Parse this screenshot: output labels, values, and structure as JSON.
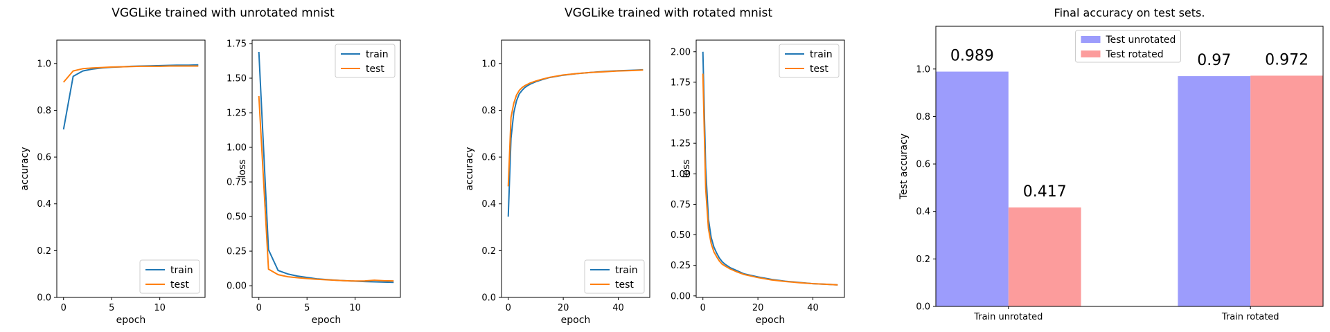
{
  "figure": {
    "left_title": "VGGLike trained with unrotated mnist",
    "middle_title": "VGGLike trained with rotated mnist"
  },
  "colors": {
    "train": "#1f77b4",
    "test": "#ff7f0e",
    "test_unrotated_bar": "#9c9cfc",
    "test_rotated_bar": "#fc9c9c"
  },
  "chart_data": [
    {
      "id": "unrot_acc",
      "type": "line",
      "xlabel": "epoch",
      "ylabel": "accuracy",
      "xlim": [
        -0.7,
        14.7
      ],
      "ylim": [
        0.0,
        1.1
      ],
      "xticks": [
        0,
        5,
        10
      ],
      "yticks": [
        0.0,
        0.2,
        0.4,
        0.6,
        0.8,
        1.0
      ],
      "ytick_labels": [
        "0.0",
        "0.2",
        "0.4",
        "0.6",
        "0.8",
        "1.0"
      ],
      "legend": "bottom-right",
      "series": [
        {
          "name": "train",
          "x": [
            0,
            1,
            2,
            3,
            4,
            5,
            6,
            7,
            8,
            9,
            10,
            11,
            12,
            13,
            14
          ],
          "y": [
            0.718,
            0.945,
            0.968,
            0.976,
            0.981,
            0.984,
            0.986,
            0.988,
            0.989,
            0.99,
            0.991,
            0.992,
            0.993,
            0.993,
            0.994
          ]
        },
        {
          "name": "test",
          "x": [
            0,
            1,
            2,
            3,
            4,
            5,
            6,
            7,
            8,
            9,
            10,
            11,
            12,
            13,
            14
          ],
          "y": [
            0.92,
            0.968,
            0.978,
            0.981,
            0.983,
            0.985,
            0.986,
            0.987,
            0.988,
            0.988,
            0.988,
            0.989,
            0.989,
            0.989,
            0.989
          ]
        }
      ]
    },
    {
      "id": "unrot_loss",
      "type": "line",
      "xlabel": "epoch",
      "ylabel": "loss",
      "xlim": [
        -0.7,
        14.7
      ],
      "ylim": [
        -0.0845,
        1.775
      ],
      "xticks": [
        0,
        5,
        10
      ],
      "yticks": [
        0.0,
        0.25,
        0.5,
        0.75,
        1.0,
        1.25,
        1.5,
        1.75
      ],
      "ytick_labels": [
        "0.00",
        "0.25",
        "0.50",
        "0.75",
        "1.00",
        "1.25",
        "1.50",
        "1.75"
      ],
      "legend": "top-right",
      "series": [
        {
          "name": "train",
          "x": [
            0,
            1,
            2,
            3,
            4,
            5,
            6,
            7,
            8,
            9,
            10,
            11,
            12,
            13,
            14
          ],
          "y": [
            1.69,
            0.26,
            0.11,
            0.085,
            0.07,
            0.06,
            0.05,
            0.045,
            0.04,
            0.036,
            0.033,
            0.03,
            0.028,
            0.026,
            0.024
          ]
        },
        {
          "name": "test",
          "x": [
            0,
            1,
            2,
            3,
            4,
            5,
            6,
            7,
            8,
            9,
            10,
            11,
            12,
            13,
            14
          ],
          "y": [
            1.37,
            0.12,
            0.08,
            0.065,
            0.058,
            0.052,
            0.047,
            0.043,
            0.039,
            0.036,
            0.034,
            0.035,
            0.04,
            0.036,
            0.035
          ]
        }
      ]
    },
    {
      "id": "rot_acc",
      "type": "line",
      "xlabel": "epoch",
      "ylabel": "accuracy",
      "xlim": [
        -2.45,
        51.45
      ],
      "ylim": [
        0.0,
        1.1
      ],
      "xticks": [
        0,
        20,
        40
      ],
      "yticks": [
        0.0,
        0.2,
        0.4,
        0.6,
        0.8,
        1.0
      ],
      "ytick_labels": [
        "0.0",
        "0.2",
        "0.4",
        "0.6",
        "0.8",
        "1.0"
      ],
      "legend": "bottom-right",
      "series": [
        {
          "name": "train",
          "x": [
            0,
            1,
            2,
            3,
            4,
            5,
            6,
            7,
            8,
            10,
            12,
            15,
            20,
            25,
            30,
            35,
            40,
            45,
            49
          ],
          "y": [
            0.345,
            0.68,
            0.79,
            0.84,
            0.87,
            0.885,
            0.897,
            0.905,
            0.912,
            0.922,
            0.93,
            0.94,
            0.95,
            0.957,
            0.962,
            0.966,
            0.969,
            0.971,
            0.973
          ]
        },
        {
          "name": "test",
          "x": [
            0,
            1,
            2,
            3,
            4,
            5,
            6,
            7,
            8,
            10,
            12,
            15,
            20,
            25,
            30,
            35,
            40,
            45,
            49
          ],
          "y": [
            0.475,
            0.77,
            0.83,
            0.865,
            0.885,
            0.897,
            0.905,
            0.911,
            0.917,
            0.925,
            0.932,
            0.941,
            0.951,
            0.957,
            0.962,
            0.965,
            0.968,
            0.97,
            0.972
          ]
        }
      ]
    },
    {
      "id": "rot_loss",
      "type": "line",
      "xlabel": "epoch",
      "ylabel": "loss",
      "xlim": [
        -2.45,
        51.45
      ],
      "ylim": [
        -0.0125,
        2.095
      ],
      "xticks": [
        0,
        20,
        40
      ],
      "yticks": [
        0.0,
        0.25,
        0.5,
        0.75,
        1.0,
        1.25,
        1.5,
        1.75,
        2.0
      ],
      "ytick_labels": [
        "0.00",
        "0.25",
        "0.50",
        "0.75",
        "1.00",
        "1.25",
        "1.50",
        "1.75",
        "2.00"
      ],
      "legend": "top-right",
      "series": [
        {
          "name": "train",
          "x": [
            0,
            1,
            2,
            3,
            4,
            5,
            6,
            7,
            8,
            10,
            12,
            15,
            20,
            25,
            30,
            35,
            40,
            45,
            49
          ],
          "y": [
            2.0,
            1.05,
            0.63,
            0.48,
            0.4,
            0.35,
            0.31,
            0.28,
            0.26,
            0.23,
            0.21,
            0.18,
            0.155,
            0.135,
            0.12,
            0.11,
            0.1,
            0.095,
            0.09
          ]
        },
        {
          "name": "test",
          "x": [
            0,
            1,
            2,
            3,
            4,
            5,
            6,
            7,
            8,
            10,
            12,
            15,
            20,
            25,
            30,
            35,
            40,
            45,
            49
          ],
          "y": [
            1.82,
            0.88,
            0.55,
            0.43,
            0.36,
            0.32,
            0.285,
            0.26,
            0.245,
            0.22,
            0.2,
            0.175,
            0.15,
            0.13,
            0.118,
            0.108,
            0.1,
            0.095,
            0.09
          ]
        }
      ]
    },
    {
      "id": "final_bars",
      "type": "bar",
      "title": "Final accuracy on test sets.",
      "ylabel": "Test accuracy",
      "xlim": [
        -0.3,
        1.3
      ],
      "ylim": [
        0.0,
        1.18
      ],
      "yticks": [
        0.0,
        0.2,
        0.4,
        0.6,
        0.8,
        1.0
      ],
      "ytick_labels": [
        "0.0",
        "0.2",
        "0.4",
        "0.6",
        "0.8",
        "1.0"
      ],
      "categories": [
        "Train unrotated",
        "Train rotated"
      ],
      "legend": "top-center",
      "series": [
        {
          "name": "Test unrotated",
          "values": [
            0.989,
            0.97
          ],
          "labels": [
            "0.989",
            "0.97"
          ]
        },
        {
          "name": "Test rotated",
          "values": [
            0.417,
            0.972
          ],
          "labels": [
            "0.417",
            "0.972"
          ]
        }
      ]
    }
  ]
}
